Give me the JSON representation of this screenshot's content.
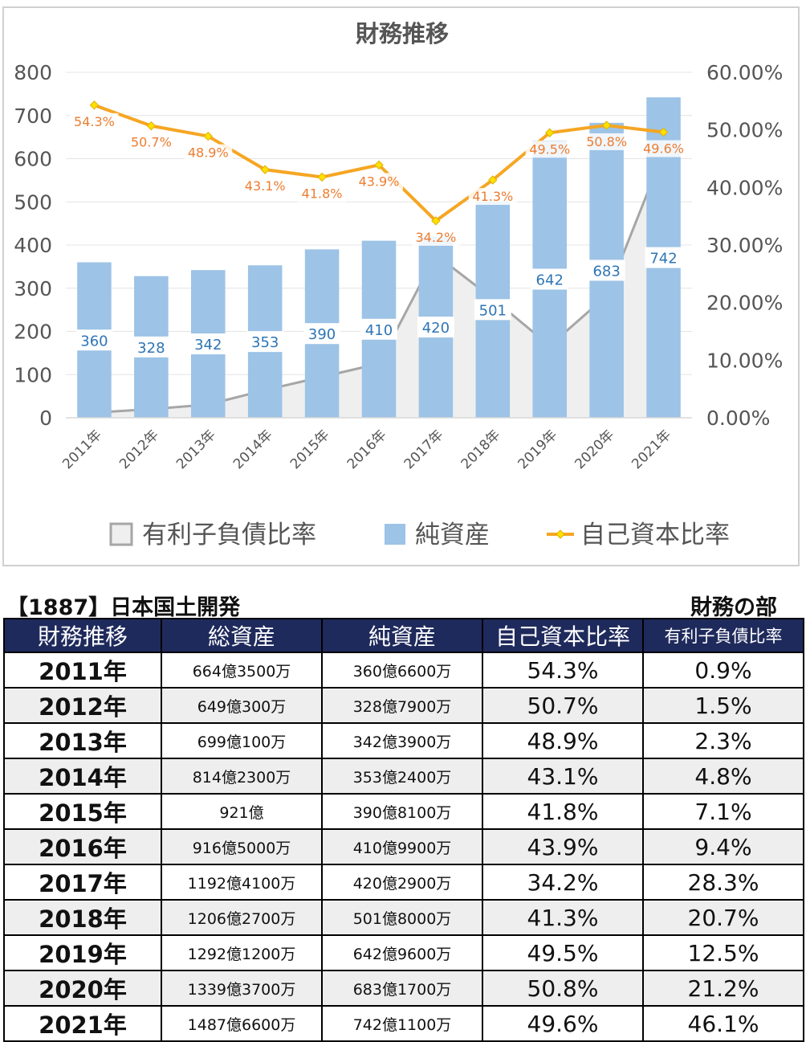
{
  "chart_data": {
    "type": "bar+line",
    "title": "財務推移",
    "categories": [
      "2011年",
      "2012年",
      "2013年",
      "2014年",
      "2015年",
      "2016年",
      "2017年",
      "2018年",
      "2019年",
      "2020年",
      "2021年"
    ],
    "left_axis": {
      "min": 0,
      "max": 800,
      "ticks": [
        "0",
        "100",
        "200",
        "300",
        "400",
        "500",
        "600",
        "700",
        "800"
      ]
    },
    "right_axis": {
      "min": 0,
      "max": 60,
      "ticks": [
        "0.00%",
        "10.00%",
        "20.00%",
        "30.00%",
        "40.00%",
        "50.00%",
        "60.00%"
      ]
    },
    "series": [
      {
        "name": "有利子負債比率",
        "kind": "area",
        "axis": "right",
        "color": "#a6a6a6",
        "fill": "#efefef",
        "values": [
          0.9,
          1.5,
          2.3,
          4.8,
          7.1,
          9.4,
          28.3,
          20.7,
          12.5,
          21.2,
          46.1
        ]
      },
      {
        "name": "純資産",
        "kind": "bar",
        "axis": "left",
        "color": "#9dc3e6",
        "values": [
          360,
          328,
          342,
          353,
          390,
          410,
          420,
          501,
          642,
          683,
          742
        ],
        "labels": [
          "360",
          "328",
          "342",
          "353",
          "390",
          "410",
          "420",
          "501",
          "642",
          "683",
          "742"
        ]
      },
      {
        "name": "自己資本比率",
        "kind": "line",
        "axis": "right",
        "color": "#f5a623",
        "marker": "#ffe000",
        "values": [
          54.3,
          50.7,
          48.9,
          43.1,
          41.8,
          43.9,
          34.2,
          41.3,
          49.5,
          50.8,
          49.6
        ],
        "labels": [
          "54.3%",
          "50.7%",
          "48.9%",
          "43.1%",
          "41.8%",
          "43.9%",
          "34.2%",
          "41.3%",
          "49.5%",
          "50.8%",
          "49.6%"
        ]
      }
    ],
    "legend_position": "bottom",
    "grid": true
  },
  "table": {
    "heading": "【1887】日本国土開発",
    "subheading": "財務の部",
    "columns": [
      "財務推移",
      "総資産",
      "純資産",
      "自己資本比率",
      "有利子負債比率"
    ],
    "rows": [
      [
        "2011年",
        "664億3500万",
        "360億6600万",
        "54.3%",
        "0.9%"
      ],
      [
        "2012年",
        "649億300万",
        "328億7900万",
        "50.7%",
        "1.5%"
      ],
      [
        "2013年",
        "699億100万",
        "342億3900万",
        "48.9%",
        "2.3%"
      ],
      [
        "2014年",
        "814億2300万",
        "353億2400万",
        "43.1%",
        "4.8%"
      ],
      [
        "2015年",
        "921億",
        "390億8100万",
        "41.8%",
        "7.1%"
      ],
      [
        "2016年",
        "916億5000万",
        "410億9900万",
        "43.9%",
        "9.4%"
      ],
      [
        "2017年",
        "1192億4100万",
        "420億2900万",
        "34.2%",
        "28.3%"
      ],
      [
        "2018年",
        "1206億2700万",
        "501億8000万",
        "41.3%",
        "20.7%"
      ],
      [
        "2019年",
        "1292億1200万",
        "642億9600万",
        "49.5%",
        "12.5%"
      ],
      [
        "2020年",
        "1339億3700万",
        "683億1700万",
        "50.8%",
        "21.2%"
      ],
      [
        "2021年",
        "1487億6600万",
        "742億1100万",
        "49.6%",
        "46.1%"
      ]
    ]
  }
}
